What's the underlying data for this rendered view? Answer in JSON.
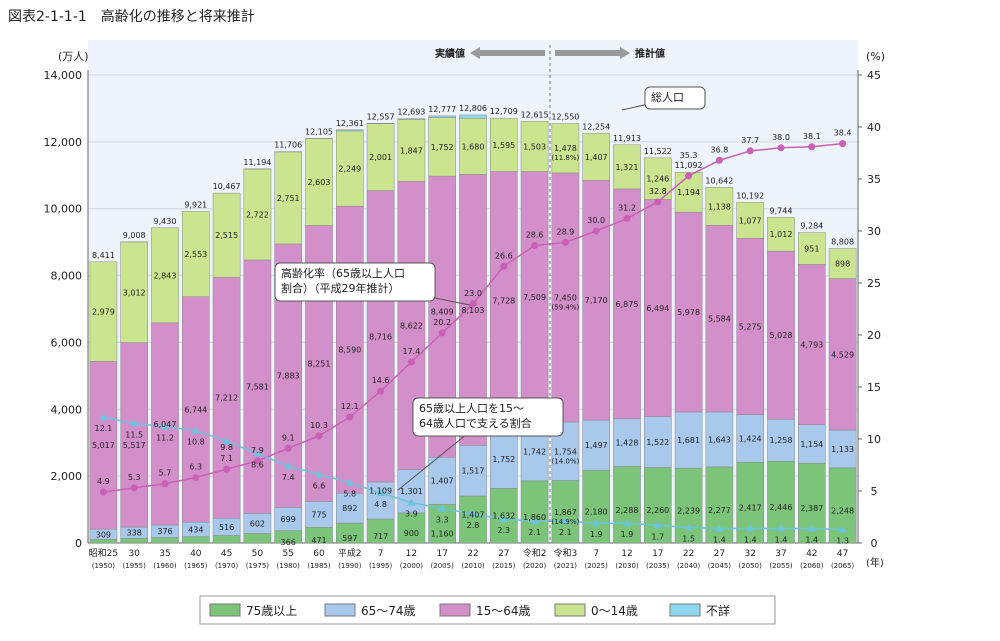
{
  "title": "図表2-1-1-1　高齢化の推移と将来推計",
  "chart_data": {
    "type": "bar",
    "stacked": true,
    "ylabel_left": "(万人)",
    "ylabel_right": "(%)",
    "xlabel": "(年)",
    "ylim": [
      0,
      14000
    ],
    "ylim_right": [
      0,
      45
    ],
    "yticks": [
      "0",
      "2,000",
      "4,000",
      "6,000",
      "8,000",
      "10,000",
      "12,000",
      "14,000"
    ],
    "yticks_right": [
      "0",
      "5",
      "10",
      "15",
      "20",
      "25",
      "30",
      "35",
      "40",
      "45"
    ],
    "grid": true,
    "legend_position": "bottom",
    "actual_label": "実績値",
    "estimate_label": "推計値",
    "total_label": "総人口",
    "aging_rate_label": "高齢化率（65歳以上人口割合）（平成29年推計）",
    "support_label": "65歳以上人口を15～64歳人口で支える割合",
    "categories": [
      "昭和25",
      "30",
      "35",
      "40",
      "45",
      "50",
      "55",
      "60",
      "平成2",
      "7",
      "12",
      "17",
      "22",
      "27",
      "令和2",
      "令和3",
      "7",
      "12",
      "17",
      "22",
      "27",
      "32",
      "37",
      "42",
      "47"
    ],
    "years": [
      "(1950)",
      "(1955)",
      "(1960)",
      "(1965)",
      "(1970)",
      "(1975)",
      "(1980)",
      "(1985)",
      "(1990)",
      "(1995)",
      "(2000)",
      "(2005)",
      "(2010)",
      "(2015)",
      "(2020)",
      "(2021)",
      "(2025)",
      "(2030)",
      "(2035)",
      "(2040)",
      "(2045)",
      "(2050)",
      "(2055)",
      "(2060)",
      "(2065)"
    ],
    "totals": [
      "8,411",
      "9,008",
      "9,430",
      "9,921",
      "10,467",
      "11,194",
      "11,706",
      "12,105",
      "12,361",
      "12,557",
      "12,693",
      "12,777",
      "12,806",
      "12,709",
      "12,615",
      "12,550",
      "12,254",
      "11,913",
      "11,522",
      "11,092",
      "10,642",
      "10,192",
      "9,744",
      "9,284",
      "8,808"
    ],
    "series": [
      {
        "name": "75歳以上",
        "color": "#7cc47a",
        "values": [
          107,
          139,
          164,
          189,
          224,
          284,
          366,
          471,
          597,
          717,
          900,
          1160,
          1407,
          1632,
          1860,
          1867,
          2180,
          2288,
          2260,
          2239,
          2277,
          2417,
          2446,
          2387,
          2248
        ]
      },
      {
        "name": "65～74歳",
        "color": "#a8c8ec",
        "values": [
          309,
          338,
          376,
          434,
          516,
          602,
          699,
          775,
          892,
          1109,
          1301,
          1407,
          1517,
          1752,
          1742,
          1754,
          1497,
          1428,
          1522,
          1681,
          1643,
          1424,
          1258,
          1154,
          1133
        ]
      },
      {
        "name": "15～64歳",
        "color": "#d28fc9",
        "values": [
          5017,
          5517,
          6047,
          6744,
          7212,
          7581,
          7883,
          8251,
          8590,
          8716,
          8622,
          8409,
          8103,
          7728,
          7509,
          7450,
          7170,
          6875,
          6494,
          5978,
          5584,
          5275,
          5028,
          4793,
          4529
        ]
      },
      {
        "name": "0～14歳",
        "color": "#cbe490",
        "values": [
          2979,
          3012,
          2843,
          2553,
          2515,
          2722,
          2751,
          2603,
          2249,
          2001,
          1847,
          1752,
          1680,
          1595,
          1503,
          1478,
          1407,
          1321,
          1246,
          1194,
          1138,
          1077,
          1012,
          951,
          898
        ]
      },
      {
        "name": "不詳",
        "color": "#8fd7ef",
        "values": [
          0,
          2,
          0,
          0,
          0,
          5,
          7,
          4,
          33,
          13,
          23,
          49,
          98,
          0,
          0,
          0,
          0,
          0,
          0,
          0,
          0,
          0,
          0,
          0,
          0
        ]
      }
    ],
    "share_2021": {
      "0～14歳": "(11.8%)",
      "15～64歳": "(59.4%)",
      "65～74歳": "(14.0%)",
      "75歳以上": "(14.9%)"
    },
    "aging_rate": {
      "color": "#c95fb6",
      "values": [
        4.9,
        5.3,
        5.7,
        6.3,
        7.1,
        7.9,
        9.1,
        10.3,
        12.1,
        14.6,
        17.4,
        20.2,
        23.0,
        26.6,
        28.6,
        28.9,
        30.0,
        31.2,
        32.8,
        35.3,
        36.8,
        37.7,
        38.0,
        38.1,
        38.4
      ]
    },
    "support_ratio": {
      "color": "#6cc3dd",
      "values": [
        12.1,
        11.5,
        11.2,
        10.8,
        9.8,
        8.6,
        7.4,
        6.6,
        5.8,
        4.8,
        3.9,
        3.3,
        2.8,
        2.3,
        2.1,
        2.1,
        1.9,
        1.9,
        1.7,
        1.5,
        1.4,
        1.4,
        1.4,
        1.4,
        1.3
      ]
    }
  }
}
